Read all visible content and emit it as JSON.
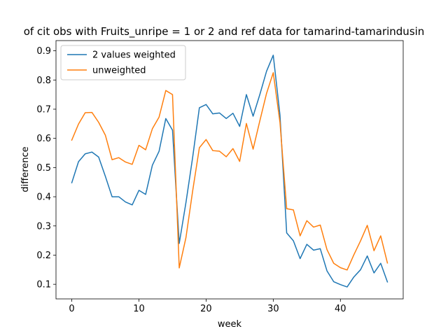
{
  "chart_data": {
    "type": "line",
    "title": "of cit obs with Fruits_unripe = 1 or 2 and ref data for tamarind-tamarindusin",
    "xlabel": "week",
    "ylabel": "difference",
    "xlim": [
      -2.35,
      49.35
    ],
    "ylim": [
      0.05,
      0.935
    ],
    "xticks": [
      0,
      10,
      20,
      30,
      40
    ],
    "yticks": [
      0.1,
      0.2,
      0.3,
      0.4,
      0.5,
      0.6,
      0.7,
      0.8,
      0.9
    ],
    "ytick_labels": [
      "0.1",
      "0.2",
      "0.3",
      "0.4",
      "0.5",
      "0.6",
      "0.7",
      "0.8",
      "0.9"
    ],
    "legend": "top-left",
    "grid": false,
    "x": [
      0,
      1,
      2,
      3,
      4,
      5,
      6,
      7,
      8,
      9,
      10,
      11,
      12,
      13,
      14,
      15,
      16,
      17,
      18,
      19,
      20,
      21,
      22,
      23,
      24,
      25,
      26,
      27,
      28,
      29,
      30,
      31,
      32,
      33,
      34,
      35,
      36,
      37,
      38,
      39,
      40,
      41,
      42,
      43,
      44,
      45,
      46,
      47
    ],
    "series": [
      {
        "name": "2 values weighted",
        "color": "#1f77b4",
        "values": [
          0.448,
          0.52,
          0.547,
          0.553,
          0.536,
          0.47,
          0.4,
          0.4,
          0.382,
          0.372,
          0.422,
          0.408,
          0.508,
          0.556,
          0.668,
          0.628,
          0.24,
          0.38,
          0.535,
          0.705,
          0.716,
          0.684,
          0.687,
          0.668,
          0.686,
          0.641,
          0.75,
          0.676,
          0.75,
          0.83,
          0.885,
          0.68,
          0.276,
          0.249,
          0.188,
          0.237,
          0.217,
          0.222,
          0.146,
          0.109,
          0.099,
          0.091,
          0.125,
          0.15,
          0.197,
          0.139,
          0.172,
          0.108
        ]
      },
      {
        "name": "unweighted",
        "color": "#ff7f0e",
        "values": [
          0.594,
          0.649,
          0.688,
          0.689,
          0.655,
          0.611,
          0.527,
          0.534,
          0.519,
          0.511,
          0.576,
          0.561,
          0.633,
          0.673,
          0.764,
          0.75,
          0.156,
          0.26,
          0.42,
          0.568,
          0.596,
          0.558,
          0.556,
          0.537,
          0.565,
          0.521,
          0.651,
          0.563,
          0.66,
          0.754,
          0.825,
          0.655,
          0.359,
          0.355,
          0.266,
          0.318,
          0.296,
          0.303,
          0.219,
          0.172,
          0.157,
          0.149,
          0.201,
          0.249,
          0.302,
          0.215,
          0.266,
          0.173
        ]
      }
    ]
  }
}
